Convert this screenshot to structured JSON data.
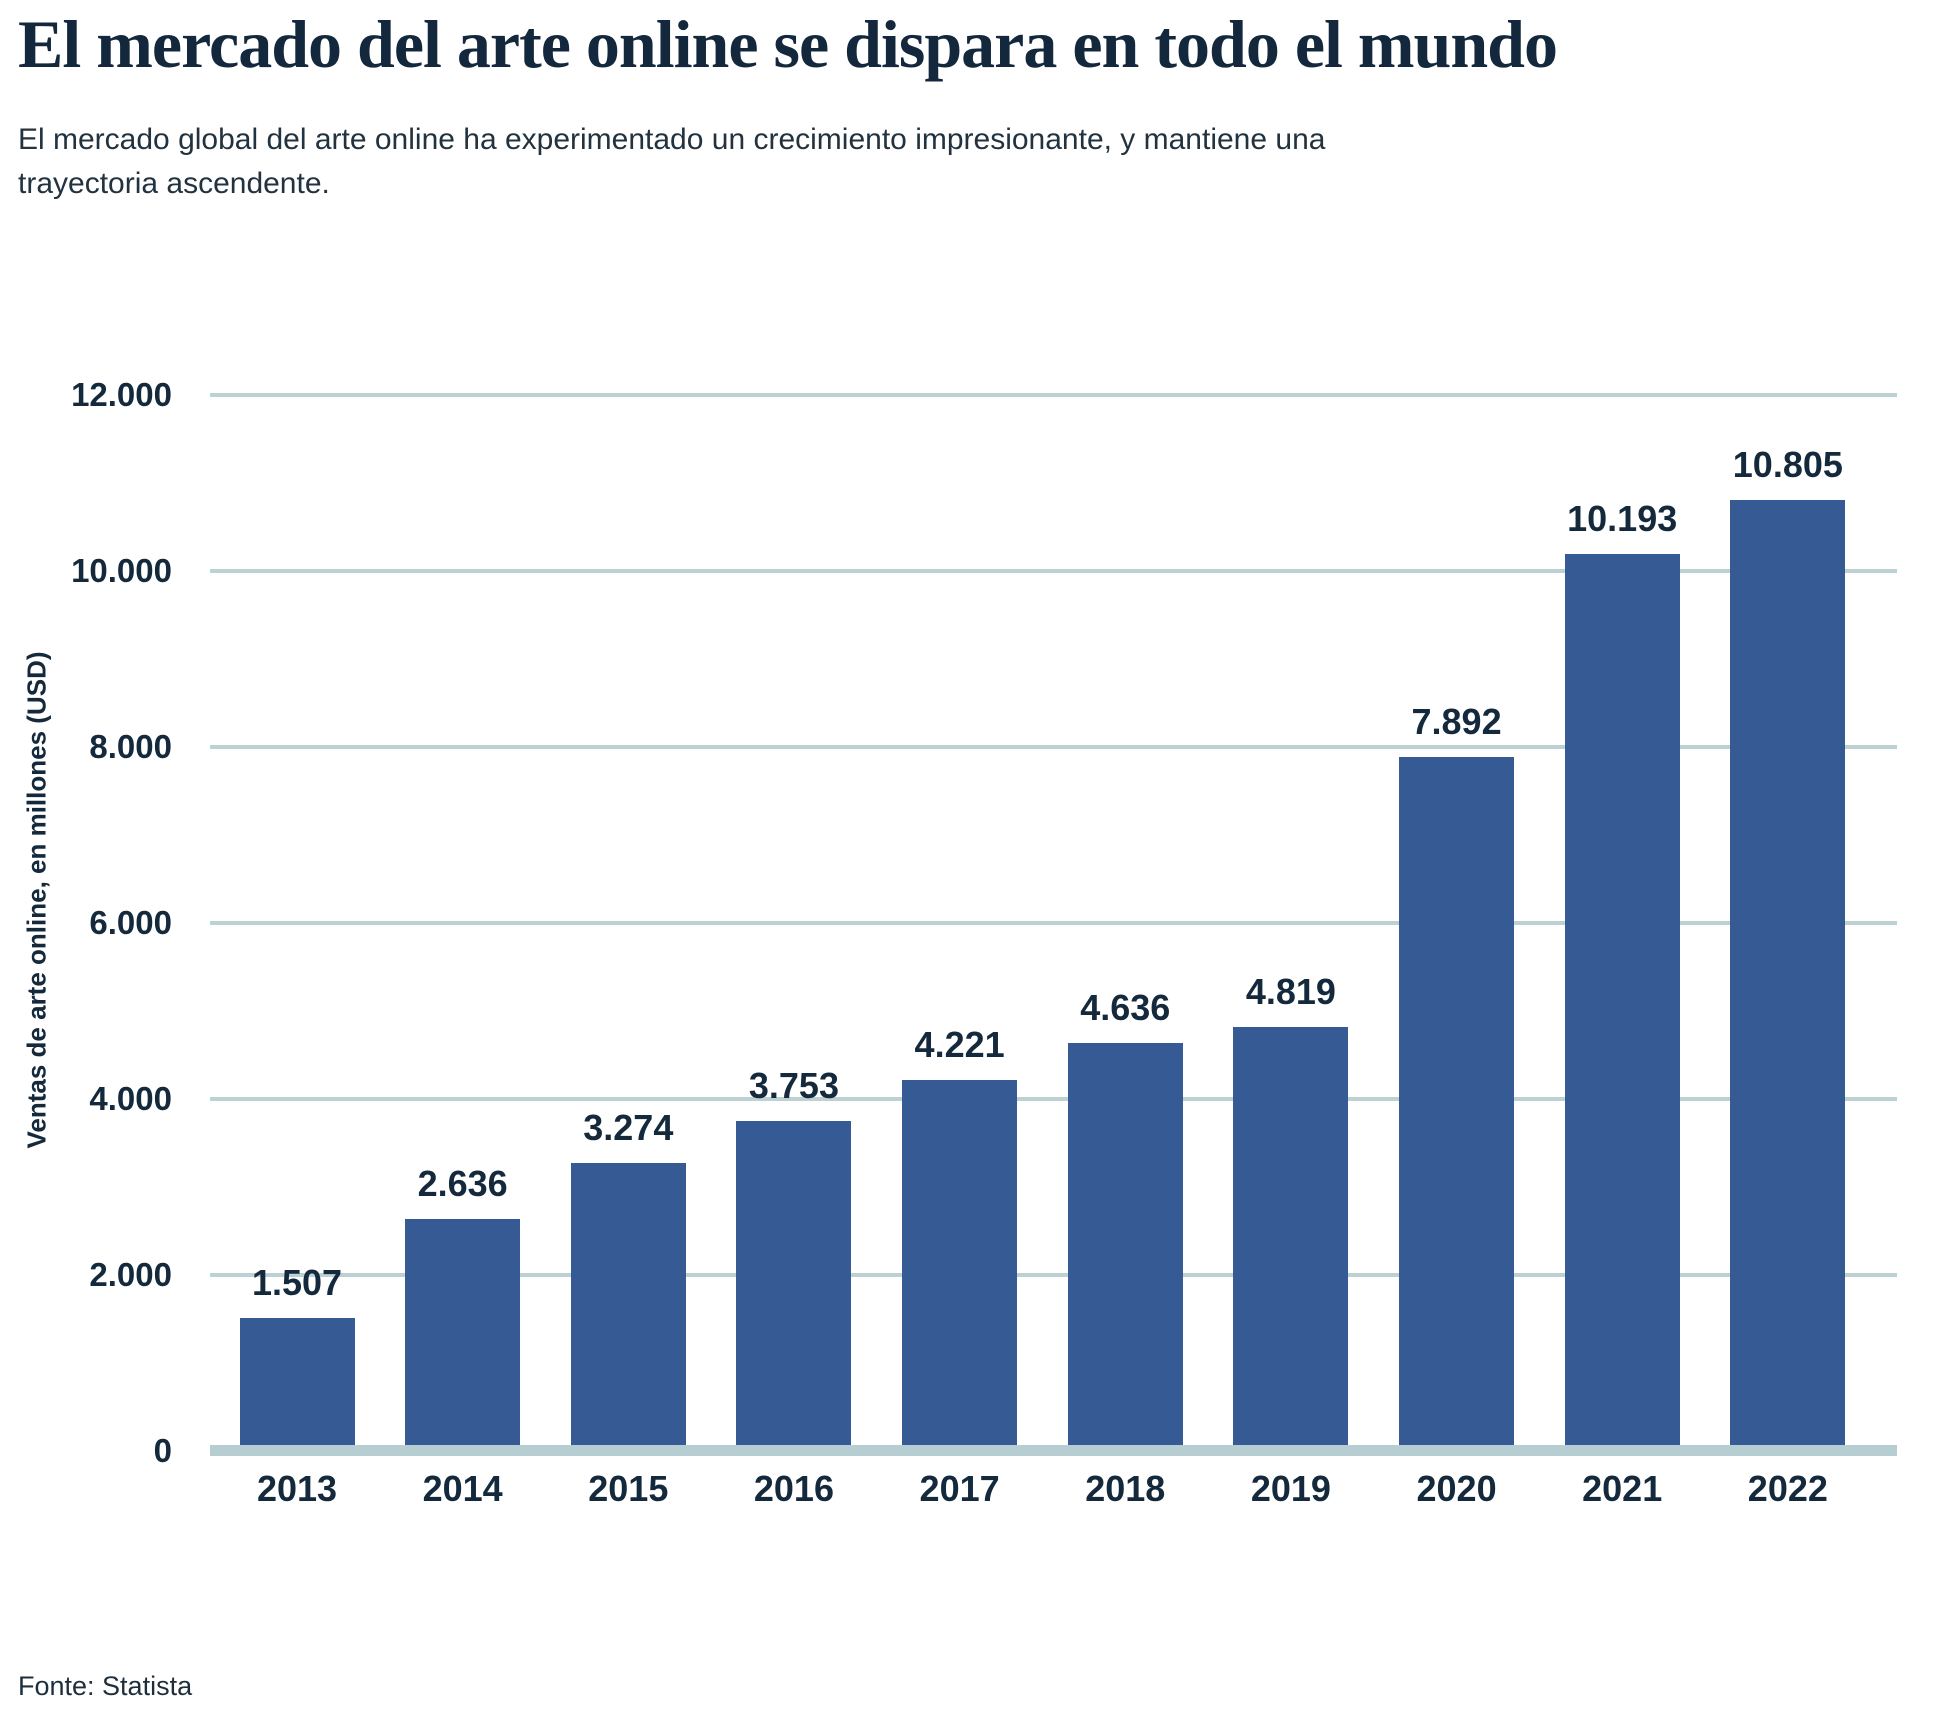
{
  "header": {
    "title": "El mercado del arte online se dispara en todo el mundo",
    "subtitle": "El mercado global del arte online ha experimentado un crecimiento impresionante, y mantiene una trayectoria ascendente."
  },
  "footer": {
    "source": "Fonte: Statista"
  },
  "colors": {
    "bar": "#365a94",
    "gridline": "#bdd0d4",
    "baseline": "#b6cdd2",
    "text": "#14293c"
  },
  "chart_data": {
    "type": "bar",
    "title": "El mercado del arte online se dispara en todo el mundo",
    "categories": [
      "2013",
      "2014",
      "2015",
      "2016",
      "2017",
      "2018",
      "2019",
      "2020",
      "2021",
      "2022"
    ],
    "values": [
      1507,
      2636,
      3274,
      3753,
      4221,
      4636,
      4819,
      7892,
      10193,
      10805
    ],
    "value_labels": [
      "1.507",
      "2.636",
      "3.274",
      "3.753",
      "4.221",
      "4.636",
      "4.819",
      "7.892",
      "10.193",
      "10.805"
    ],
    "xlabel": "",
    "ylabel": "Ventas de arte online, en millones (USD)",
    "ylim": [
      0,
      12000
    ],
    "grid": true,
    "legend": false,
    "y_ticks": [
      {
        "value": 12000,
        "label": "12.000"
      },
      {
        "value": 10000,
        "label": "10.000"
      },
      {
        "value": 8000,
        "label": "8.000"
      },
      {
        "value": 6000,
        "label": "6.000"
      },
      {
        "value": 4000,
        "label": "4.000"
      },
      {
        "value": 2000,
        "label": "2.000"
      },
      {
        "value": 0,
        "label": "0"
      }
    ]
  }
}
